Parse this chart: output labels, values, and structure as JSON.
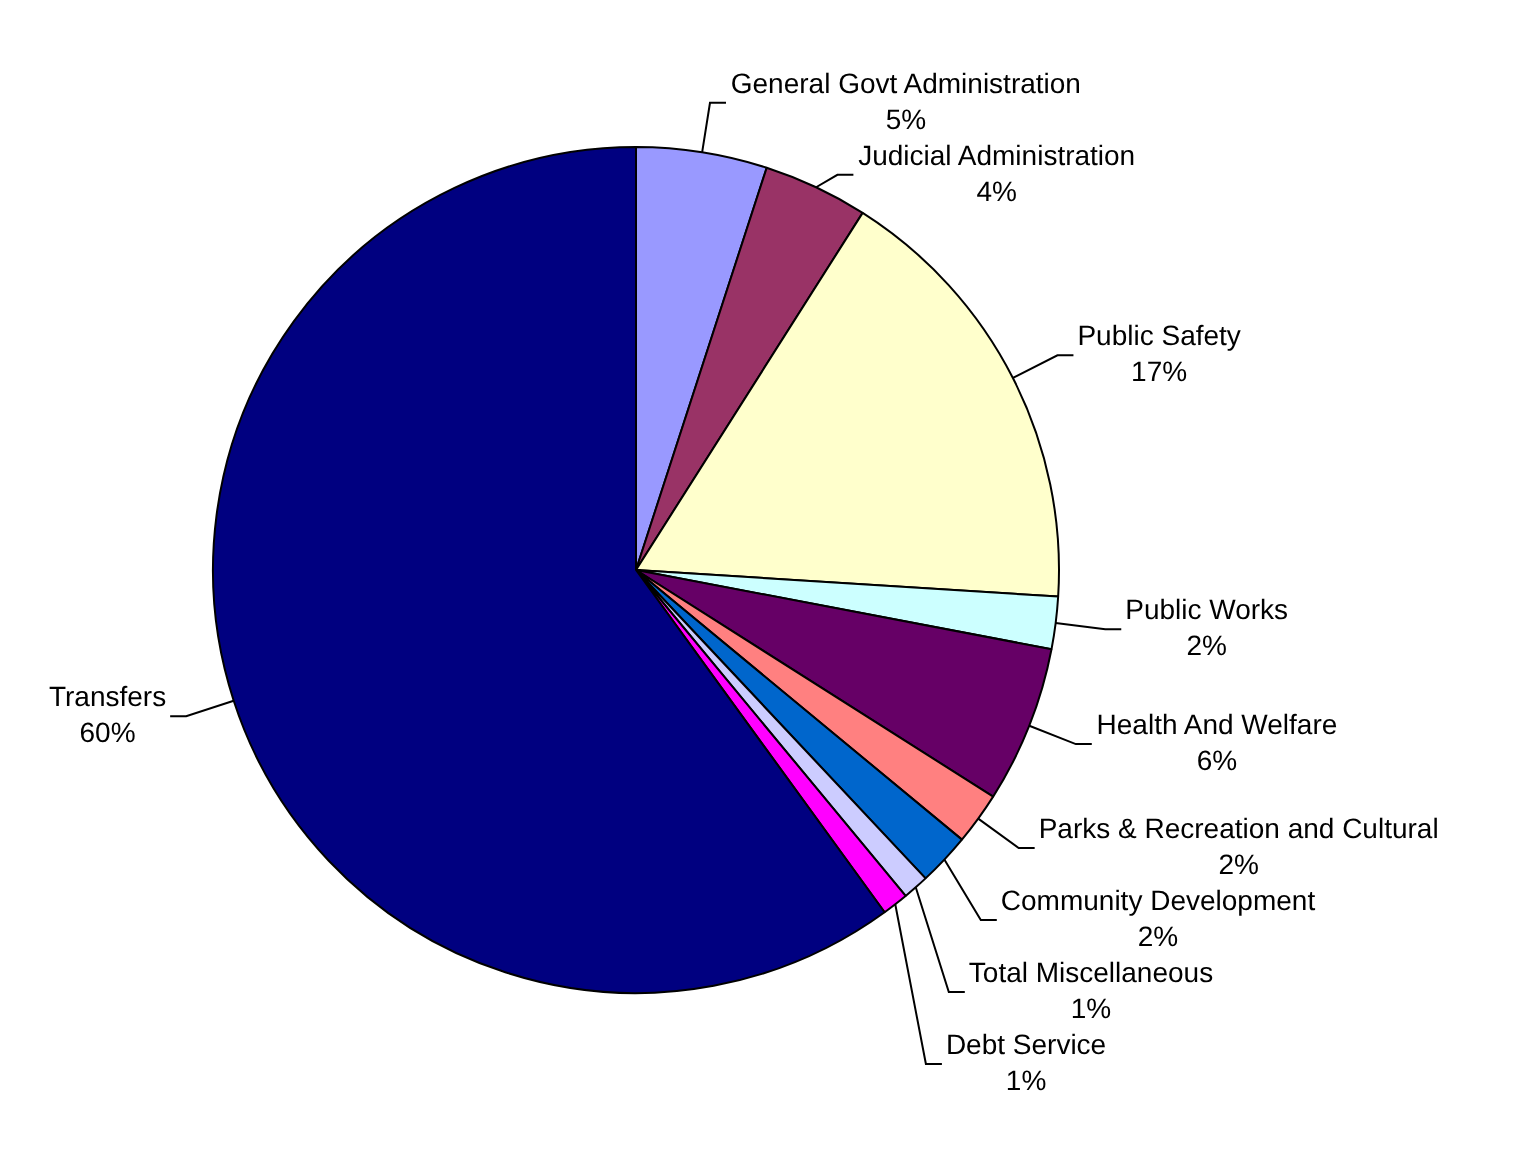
{
  "chart_data": {
    "type": "pie",
    "categories": [
      "General Govt Administration",
      "Judicial Administration",
      "Public Safety",
      "Public Works",
      "Health And Welfare",
      "Parks & Recreation and Cultural",
      "Community Development",
      "Total Miscellaneous",
      "Debt Service",
      "Transfers"
    ],
    "values": [
      5,
      4,
      17,
      2,
      6,
      2,
      2,
      1,
      1,
      60
    ],
    "value_labels": [
      "5%",
      "4%",
      "17%",
      "2%",
      "6%",
      "2%",
      "2%",
      "1%",
      "1%",
      "60%"
    ],
    "colors": [
      "#9999ff",
      "#993366",
      "#ffffcc",
      "#ccffff",
      "#660066",
      "#ff8080",
      "#0066cc",
      "#ccccff",
      "#ff00ff",
      "#000080"
    ],
    "legend": false
  }
}
